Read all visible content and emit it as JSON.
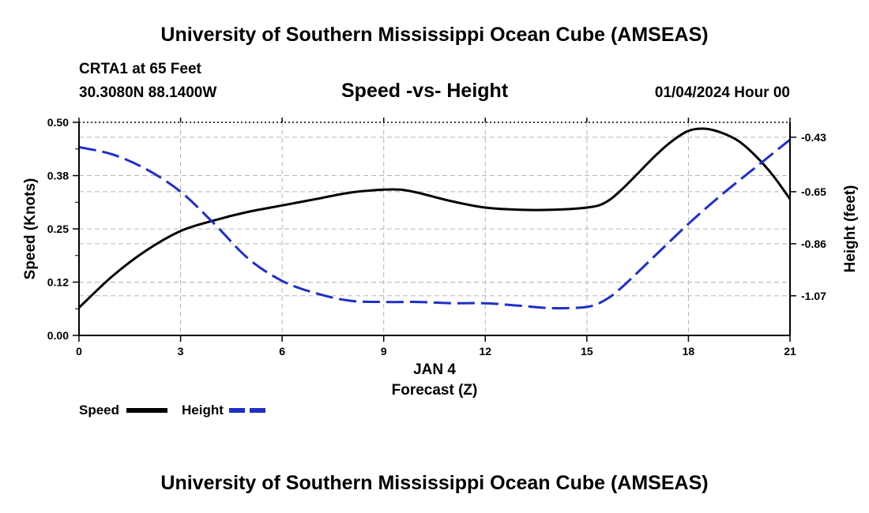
{
  "header": {
    "title": "University of Southern Mississippi Ocean Cube (AMSEAS)",
    "station": "CRTA1 at 65 Feet",
    "coordinates": "30.3080N  88.1400W",
    "date_hour": "01/04/2024 Hour 00"
  },
  "footer": {
    "title": "University of Southern Mississippi Ocean Cube (AMSEAS)"
  },
  "chart_data": {
    "type": "line",
    "title": "Speed -vs- Height",
    "xlabel_line1": "JAN 4",
    "xlabel_line2": "Forecast (Z)",
    "ylabel_left": "Speed (Knots)",
    "ylabel_right": "Height (feet)",
    "xlim": [
      0,
      21
    ],
    "ylim_left": [
      0,
      0.5
    ],
    "ylim_right": [
      -1.23,
      -0.37
    ],
    "x_ticks": [
      0,
      3,
      6,
      9,
      12,
      15,
      18,
      21
    ],
    "x_tick_labels": [
      "0",
      "3",
      "6",
      "9",
      "12",
      "15",
      "18",
      "21"
    ],
    "y_left_ticks": [
      0,
      0.125,
      0.25,
      0.375,
      0.5
    ],
    "y_left_tick_labels": [
      "0.00",
      "0.12",
      "0.25",
      "0.38",
      "0.50"
    ],
    "y_right_ticks": [
      -0.43,
      -0.65,
      -0.86,
      -1.07
    ],
    "y_right_tick_labels": [
      "-0.43",
      "-0.65",
      "-0.86",
      "-1.07"
    ],
    "grid": true,
    "legend_position": "bottom-left",
    "series": [
      {
        "name": "Speed",
        "axis": "left",
        "color": "#000000",
        "dash": "solid",
        "x": [
          0,
          1,
          2,
          3,
          4,
          5,
          6,
          7,
          8,
          9,
          9.5,
          10,
          11,
          12,
          13,
          14,
          15,
          15.5,
          16,
          17,
          17.5,
          18,
          18.5,
          19,
          19.5,
          20,
          20.5,
          21
        ],
        "values": [
          0.065,
          0.14,
          0.2,
          0.245,
          0.27,
          0.29,
          0.305,
          0.32,
          0.335,
          0.342,
          0.342,
          0.335,
          0.315,
          0.3,
          0.295,
          0.295,
          0.3,
          0.31,
          0.34,
          0.42,
          0.455,
          0.48,
          0.485,
          0.475,
          0.455,
          0.42,
          0.375,
          0.32
        ]
      },
      {
        "name": "Height",
        "axis": "right",
        "color": "#1f2fc8",
        "dash": "dashed",
        "x": [
          0,
          1,
          2,
          3,
          4,
          5,
          6,
          7,
          8,
          9,
          10,
          11,
          12,
          13,
          14,
          15,
          15.5,
          16,
          17,
          18,
          19,
          20,
          21
        ],
        "values": [
          -0.47,
          -0.5,
          -0.56,
          -0.65,
          -0.78,
          -0.92,
          -1.01,
          -1.06,
          -1.09,
          -1.095,
          -1.095,
          -1.1,
          -1.1,
          -1.11,
          -1.12,
          -1.115,
          -1.09,
          -1.04,
          -0.91,
          -0.78,
          -0.66,
          -0.55,
          -0.44
        ]
      }
    ]
  }
}
